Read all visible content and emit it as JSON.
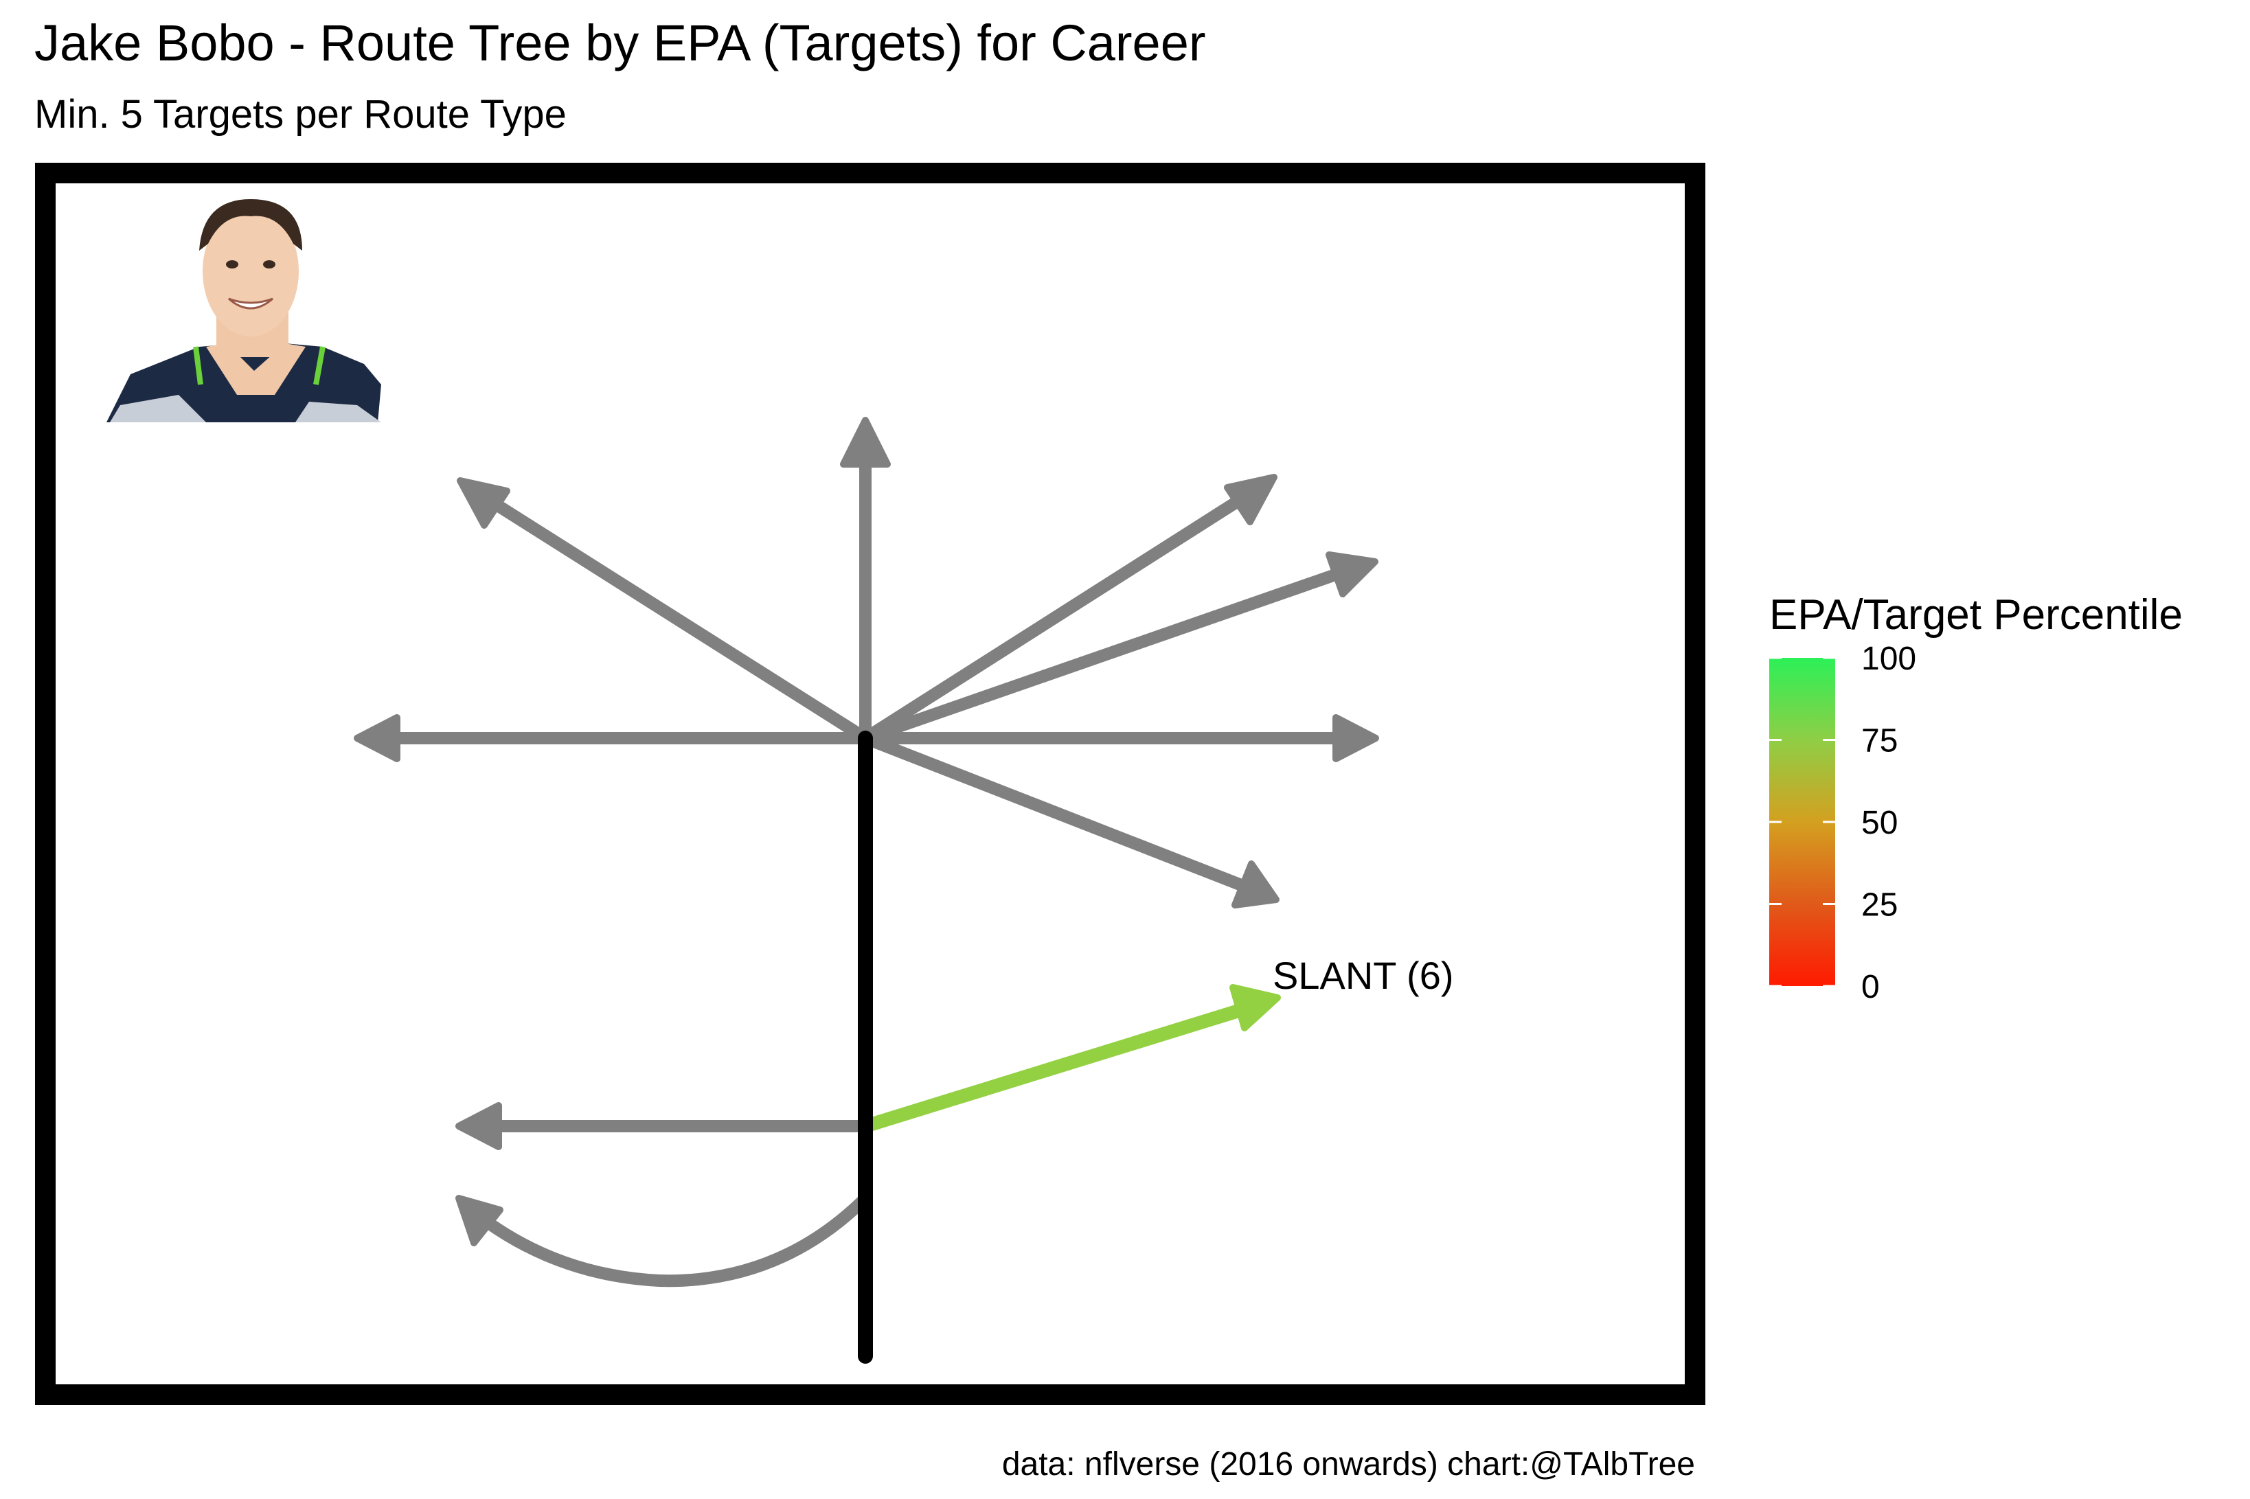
{
  "chart_data": {
    "type": "route-tree",
    "title": "Jake Bobo - Route Tree by EPA (Targets) for Career",
    "subtitle": "Min. 5 Targets per Route Type",
    "caption": "data: nflverse (2016 onwards)  chart:@TAlbTree",
    "legend": {
      "title": "EPA/Target Percentile",
      "ticks": [
        0,
        25,
        50,
        75,
        100
      ],
      "placement": "right",
      "gradient": [
        "#ff1a00",
        "#e05a1a",
        "#d4a020",
        "#8fce45",
        "#2cf058"
      ]
    },
    "routes": [
      {
        "label": "SLANT (6)",
        "percentile": 77,
        "color": "#93d142"
      }
    ],
    "inactive_color": "#808080",
    "stem_color": "#000000",
    "frame_color": "#000000"
  }
}
